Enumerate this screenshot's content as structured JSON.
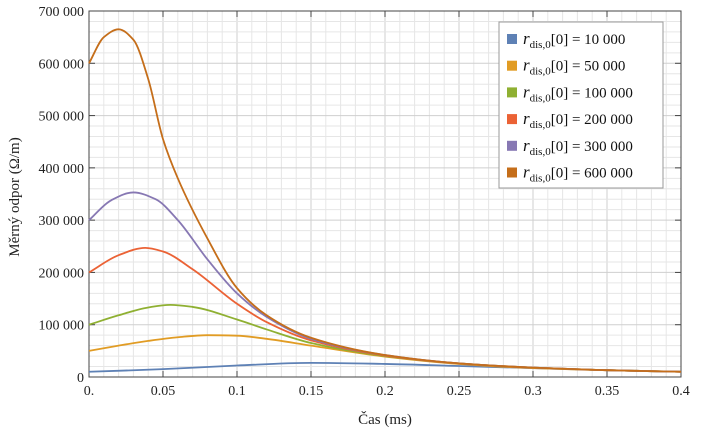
{
  "chart_data": {
    "type": "line",
    "xlabel": "Čas (ms)",
    "ylabel": "Měrný odpor (Ω/m)",
    "xlim": [
      0,
      0.4
    ],
    "ylim": [
      0,
      700000
    ],
    "grid": true,
    "legend_position": "top-right",
    "x_ticks": [
      {
        "value": 0,
        "label": "0."
      },
      {
        "value": 0.05,
        "label": "0.05"
      },
      {
        "value": 0.1,
        "label": "0.1"
      },
      {
        "value": 0.15,
        "label": "0.15"
      },
      {
        "value": 0.2,
        "label": "0.2"
      },
      {
        "value": 0.25,
        "label": "0.25"
      },
      {
        "value": 0.3,
        "label": "0.3"
      },
      {
        "value": 0.35,
        "label": "0.35"
      },
      {
        "value": 0.4,
        "label": "0.4"
      }
    ],
    "y_ticks": [
      {
        "value": 0,
        "label": "0"
      },
      {
        "value": 100000,
        "label": "100 000"
      },
      {
        "value": 200000,
        "label": "200 000"
      },
      {
        "value": 300000,
        "label": "300 000"
      },
      {
        "value": 400000,
        "label": "400 000"
      },
      {
        "value": 500000,
        "label": "500 000"
      },
      {
        "value": 600000,
        "label": "600 000"
      },
      {
        "value": 700000,
        "label": "700 000"
      }
    ],
    "legend_parts": {
      "symbol": "r",
      "subscript": "dis,0",
      "suffix": "[0] = "
    },
    "series": [
      {
        "legend_value": "10 000",
        "color": "#5e81b5",
        "x": [
          0,
          0.05,
          0.1,
          0.15,
          0.2,
          0.25,
          0.3,
          0.35,
          0.4
        ],
        "y": [
          10000,
          15000,
          22000,
          27000,
          25000,
          21000,
          17000,
          13000,
          10000
        ]
      },
      {
        "legend_value": "50 000",
        "color": "#e19c24",
        "x": [
          0,
          0.02,
          0.04,
          0.06,
          0.08,
          0.1,
          0.12,
          0.15,
          0.2,
          0.25,
          0.3,
          0.35,
          0.4
        ],
        "y": [
          50000,
          60000,
          69000,
          76000,
          80000,
          79000,
          73000,
          60000,
          39000,
          25000,
          17000,
          13000,
          10000
        ]
      },
      {
        "legend_value": "100 000",
        "color": "#8fb032",
        "x": [
          0,
          0.02,
          0.04,
          0.055,
          0.07,
          0.1,
          0.12,
          0.15,
          0.2,
          0.25,
          0.3,
          0.35,
          0.4
        ],
        "y": [
          100000,
          118000,
          133000,
          138000,
          134000,
          110000,
          91000,
          65000,
          40000,
          26000,
          18000,
          13000,
          10000
        ]
      },
      {
        "legend_value": "200 000",
        "color": "#eb6235",
        "x": [
          0,
          0.02,
          0.038,
          0.05,
          0.07,
          0.1,
          0.12,
          0.15,
          0.2,
          0.25,
          0.3,
          0.35,
          0.4
        ],
        "y": [
          200000,
          233000,
          247000,
          240000,
          206000,
          140000,
          105000,
          70000,
          41000,
          26000,
          18000,
          13000,
          10000
        ]
      },
      {
        "legend_value": "300 000",
        "color": "#8778b3",
        "x": [
          0,
          0.015,
          0.03,
          0.045,
          0.06,
          0.08,
          0.1,
          0.12,
          0.15,
          0.2,
          0.25,
          0.3,
          0.35,
          0.4
        ],
        "y": [
          300000,
          338000,
          353000,
          340000,
          300000,
          225000,
          160000,
          115000,
          73000,
          42000,
          26000,
          18000,
          13000,
          10000
        ]
      },
      {
        "legend_value": "600 000",
        "color": "#c56e1a",
        "x": [
          0,
          0.01,
          0.02,
          0.03,
          0.04,
          0.05,
          0.06,
          0.08,
          0.1,
          0.12,
          0.15,
          0.2,
          0.25,
          0.3,
          0.35,
          0.4
        ],
        "y": [
          600000,
          650000,
          665000,
          645000,
          570000,
          455000,
          380000,
          265000,
          170000,
          118000,
          75000,
          42000,
          26000,
          18000,
          13000,
          10000
        ]
      }
    ]
  }
}
